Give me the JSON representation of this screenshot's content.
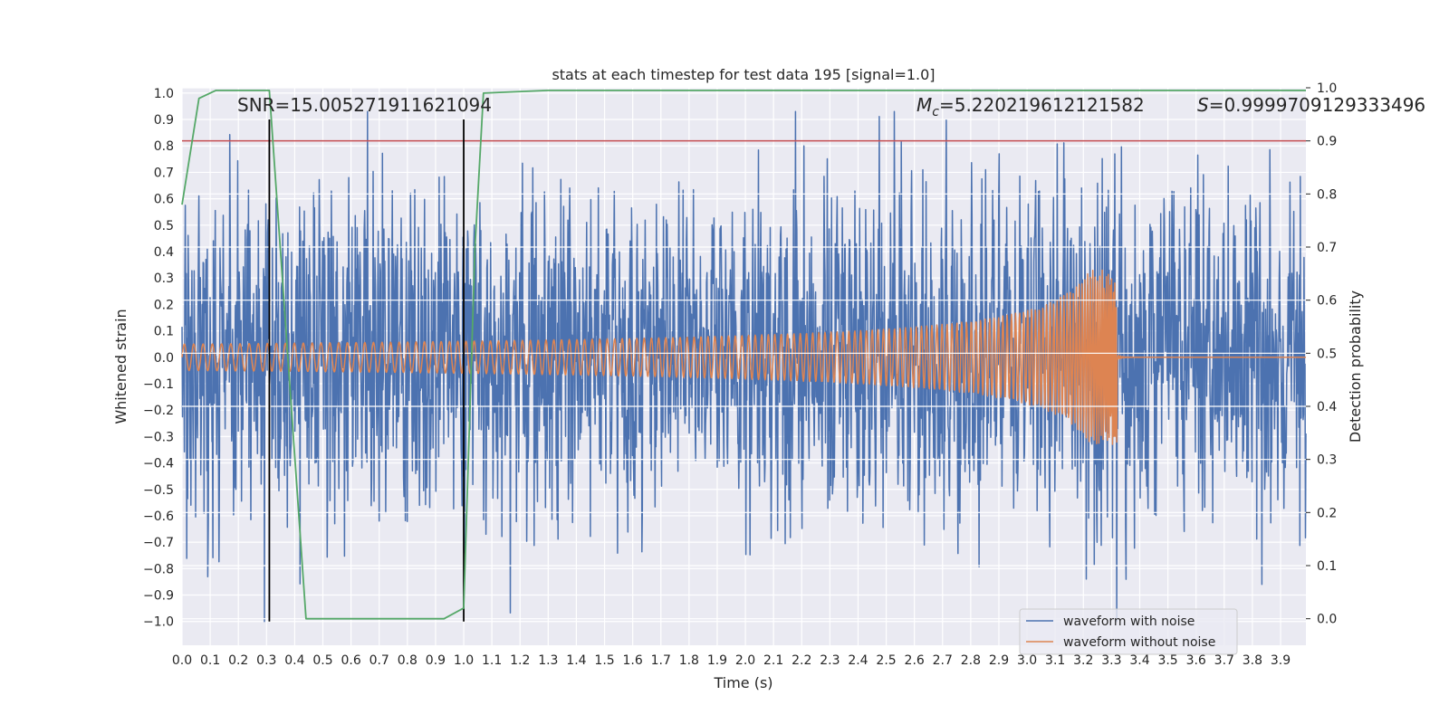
{
  "chart_data": {
    "type": "line",
    "title": "stats at each timestep for test data 195 [signal=1.0]",
    "xlabel": "Time (s)",
    "ylabel": "Whitened strain",
    "y2label": "Detection probability",
    "xlim": [
      0.0,
      3.99
    ],
    "ylim": [
      -1.09,
      1.02
    ],
    "y2lim": [
      -0.05,
      1.0
    ],
    "xticks": [
      0.0,
      0.1,
      0.2,
      0.3,
      0.4,
      0.5,
      0.6,
      0.7,
      0.8,
      0.9,
      1.0,
      1.1,
      1.2,
      1.3,
      1.4,
      1.5,
      1.6,
      1.7,
      1.8,
      1.9,
      2.0,
      2.1,
      2.2,
      2.3,
      2.4,
      2.5,
      2.6,
      2.7,
      2.8,
      2.9,
      3.0,
      3.1,
      3.2,
      3.3,
      3.4,
      3.5,
      3.6,
      3.7,
      3.8,
      3.9
    ],
    "xtick_labels": [
      "0.0",
      "0.1",
      "0.2",
      "0.3",
      "0.4",
      "0.5",
      "0.6",
      "0.7",
      "0.8",
      "0.9",
      "1.0",
      "1.1",
      "1.2",
      "1.3",
      "1.4",
      "1.5",
      "1.6",
      "1.7",
      "1.8",
      "1.9",
      "2.0",
      "2.1",
      "2.2",
      "2.3",
      "2.4",
      "2.5",
      "2.6",
      "2.7",
      "2.8",
      "2.9",
      "3.0",
      "3.1",
      "3.2",
      "3.3",
      "3.4",
      "3.5",
      "3.6",
      "3.7",
      "3.8",
      "3.9"
    ],
    "yticks": [
      1.0,
      0.9,
      0.8,
      0.7,
      0.6,
      0.5,
      0.4,
      0.3,
      0.2,
      0.1,
      0.0,
      -0.1,
      -0.2,
      -0.3,
      -0.4,
      -0.5,
      -0.6,
      -0.7,
      -0.8,
      -0.9,
      -1.0
    ],
    "ytick_labels": [
      "1.0",
      "0.9",
      "0.8",
      "0.7",
      "0.6",
      "0.5",
      "0.4",
      "0.3",
      "0.2",
      "0.1",
      "0.0",
      "−0.1",
      "−0.2",
      "−0.3",
      "−0.4",
      "−0.5",
      "−0.6",
      "−0.7",
      "−0.8",
      "−0.9",
      "−1.0"
    ],
    "y2ticks": [
      0.0,
      0.1,
      0.2,
      0.3,
      0.4,
      0.5,
      0.6,
      0.7,
      0.8,
      0.9,
      1.0
    ],
    "y2tick_labels": [
      "0.0",
      "0.1",
      "0.2",
      "0.3",
      "0.4",
      "0.5",
      "0.6",
      "0.7",
      "0.8",
      "0.9",
      "1.0"
    ],
    "annotations": {
      "snr": "SNR=15.005271911621094",
      "mc_symbol": "M",
      "mc_subscript": "c",
      "mc_value": "=5.220219612121582",
      "s_symbol": "S",
      "s_value": "=0.9999709129333496"
    },
    "threshold": {
      "axis": "y2",
      "value": 0.9,
      "color": "#c44e52"
    },
    "event_lines": {
      "x": [
        0.31,
        1.0
      ],
      "y_range": [
        -1.0,
        0.9
      ],
      "color": "#000000"
    },
    "series": [
      {
        "name": "waveform with noise",
        "axis": "y",
        "color": "#4c72b0",
        "description": "Whitened noisy strain; amplitude roughly ±0.5 with spikes to about ±0.9",
        "noise_std": 0.3,
        "x_range": [
          0.0,
          3.99
        ]
      },
      {
        "name": "waveform without noise",
        "axis": "y",
        "color": "#dd8452",
        "description": "Chirp signal: amplitude ~0.05 at t=0 growing to ~0.33 at merger t=3.32, then ~0",
        "chirp": {
          "t_merge": 3.32,
          "amp_start": 0.05,
          "amp_merge": 0.33,
          "freq_start_hz": 30
        }
      },
      {
        "name": "detection probability",
        "axis": "y2",
        "color": "#55a868",
        "x": [
          0.0,
          0.06,
          0.12,
          0.31,
          0.44,
          0.93,
          1.0,
          1.04,
          1.07,
          1.3,
          3.99
        ],
        "values": [
          0.78,
          0.98,
          0.995,
          0.995,
          0.0,
          0.0,
          0.02,
          0.7,
          0.99,
          0.995,
          0.995
        ]
      }
    ],
    "legend": {
      "location": "lower right",
      "entries": [
        {
          "label": "waveform with noise",
          "color": "#4c72b0"
        },
        {
          "label": "waveform without noise",
          "color": "#dd8452"
        }
      ]
    },
    "grid": true,
    "background": "#eaeaf2"
  }
}
